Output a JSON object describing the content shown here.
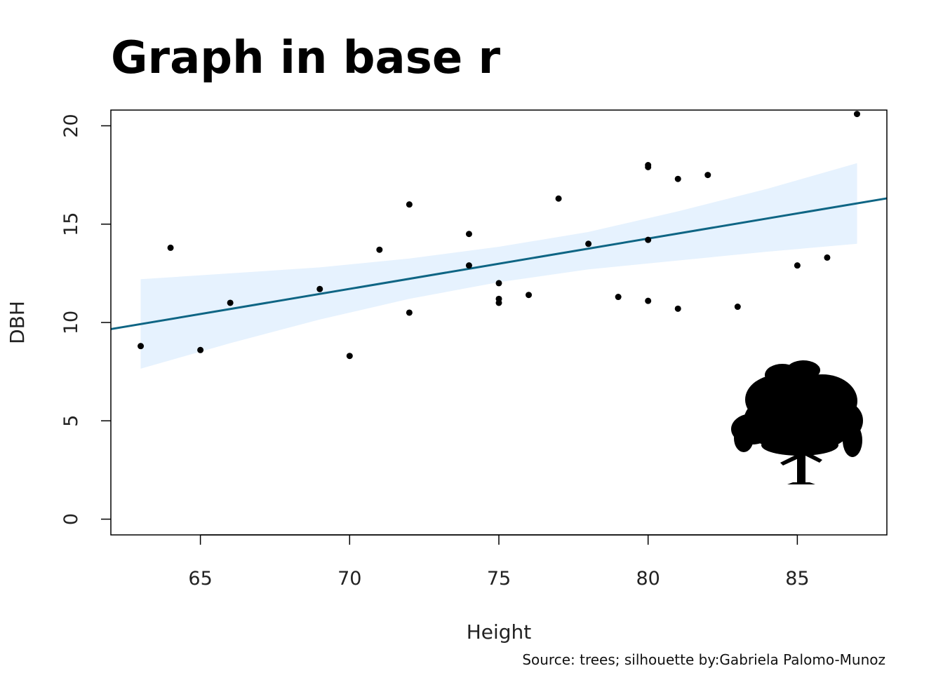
{
  "chart_data": {
    "type": "scatter",
    "title": "Graph in base r",
    "xlabel": "Height",
    "ylabel": "DBH",
    "caption": "Source: trees; silhouette by:Gabriela Palomo-Munoz",
    "xlim": [
      62,
      88
    ],
    "ylim": [
      -0.8,
      20.8
    ],
    "xticks": [
      65,
      70,
      75,
      80,
      85
    ],
    "yticks": [
      0,
      5,
      10,
      15,
      20
    ],
    "grid": false,
    "colors": {
      "points": "#000000",
      "trend_line": "#0e6584",
      "confidence_band": "#e6f2fe"
    },
    "points": [
      {
        "x": 63,
        "y": 8.8
      },
      {
        "x": 64,
        "y": 13.8
      },
      {
        "x": 65,
        "y": 8.6
      },
      {
        "x": 66,
        "y": 11.0
      },
      {
        "x": 69,
        "y": 11.7
      },
      {
        "x": 70,
        "y": 8.3
      },
      {
        "x": 71,
        "y": 13.7
      },
      {
        "x": 72,
        "y": 16.0
      },
      {
        "x": 72,
        "y": 10.5
      },
      {
        "x": 74,
        "y": 14.5
      },
      {
        "x": 74,
        "y": 12.9
      },
      {
        "x": 75,
        "y": 12.0
      },
      {
        "x": 75,
        "y": 11.2
      },
      {
        "x": 75,
        "y": 11.0
      },
      {
        "x": 76,
        "y": 11.4
      },
      {
        "x": 77,
        "y": 16.3
      },
      {
        "x": 78,
        "y": 14.0
      },
      {
        "x": 79,
        "y": 11.3
      },
      {
        "x": 80,
        "y": 18.0
      },
      {
        "x": 80,
        "y": 17.9
      },
      {
        "x": 80,
        "y": 14.2
      },
      {
        "x": 80,
        "y": 11.1
      },
      {
        "x": 81,
        "y": 17.3
      },
      {
        "x": 81,
        "y": 10.7
      },
      {
        "x": 82,
        "y": 17.5
      },
      {
        "x": 83,
        "y": 10.8
      },
      {
        "x": 85,
        "y": 12.9
      },
      {
        "x": 86,
        "y": 13.3
      },
      {
        "x": 87,
        "y": 20.6
      }
    ],
    "trend_line": {
      "intercept": -6.19,
      "slope": 0.2557
    },
    "confidence_band": {
      "x": [
        63,
        66,
        69,
        72,
        75,
        78,
        81,
        84,
        87
      ],
      "lower": [
        7.65,
        8.95,
        10.15,
        11.2,
        12.05,
        12.7,
        13.15,
        13.6,
        14.0
      ],
      "upper": [
        12.2,
        12.5,
        12.8,
        13.25,
        13.85,
        14.6,
        15.65,
        16.8,
        18.1
      ]
    },
    "silhouette": "tree-silhouette"
  }
}
